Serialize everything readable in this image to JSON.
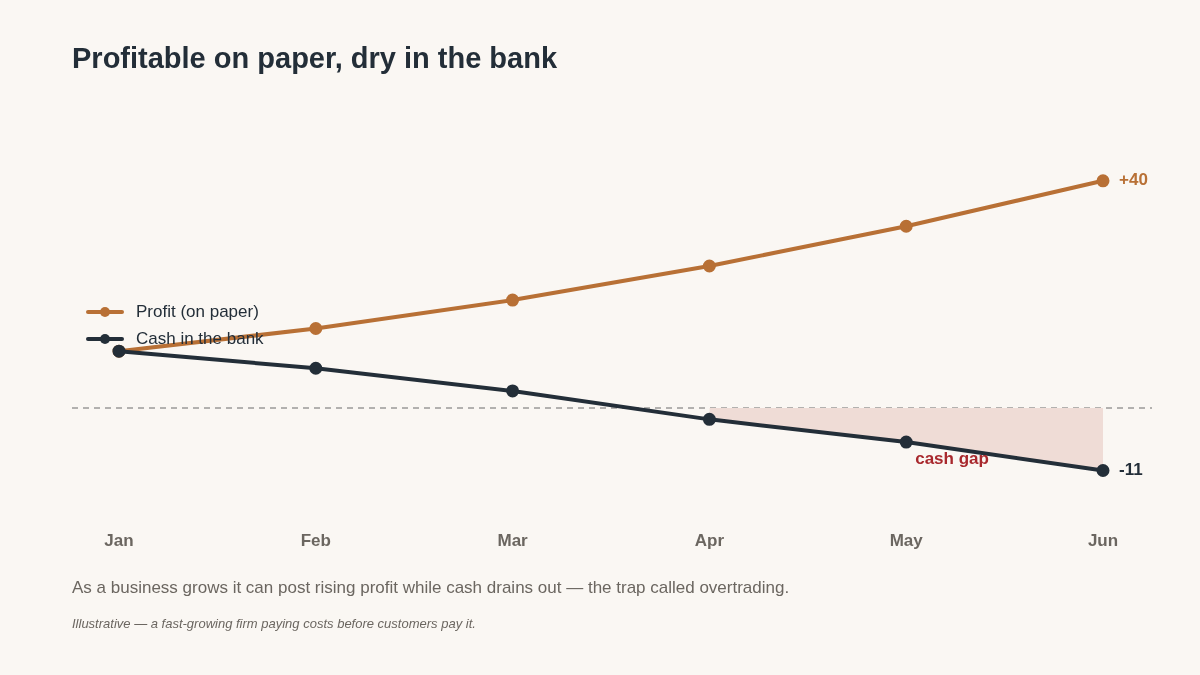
{
  "chart_data": {
    "type": "line",
    "title": "Profitable on paper, dry in the bank",
    "categories": [
      "Jan",
      "Feb",
      "Mar",
      "Apr",
      "May",
      "Jun"
    ],
    "series": [
      {
        "type": "area",
        "color": "#efdcd6",
        "values": [
          null,
          null,
          null,
          -2,
          -6,
          -11
        ]
      },
      {
        "name": "Profit (on paper)",
        "color": "#b87035",
        "marker": "circle",
        "values": [
          10,
          14,
          19,
          25,
          32,
          40
        ],
        "value_labels": [
          null,
          null,
          null,
          null,
          null,
          "+40"
        ]
      },
      {
        "name": "Cash in the bank",
        "color": "#232e38",
        "marker": "circle",
        "values": [
          10,
          7,
          3,
          -2,
          -6,
          -11
        ],
        "value_labels": [
          null,
          null,
          null,
          null,
          null,
          "-11"
        ]
      }
    ],
    "tick_labels": "x",
    "grid": false,
    "legend": "left",
    "line_style": "solid",
    "ref_lines": [
      {
        "axis": "y",
        "value": 0,
        "color": "#6b6b6b",
        "line_style": "dashed"
      }
    ],
    "annotations": [
      {
        "text": "cash gap",
        "x": "May",
        "y": -6
      },
      "As a business grows it can post rising profit while cash drains out — the trap called overtrading.",
      "Illustrative — a fast-growing firm paying costs before customers pay it."
    ]
  }
}
